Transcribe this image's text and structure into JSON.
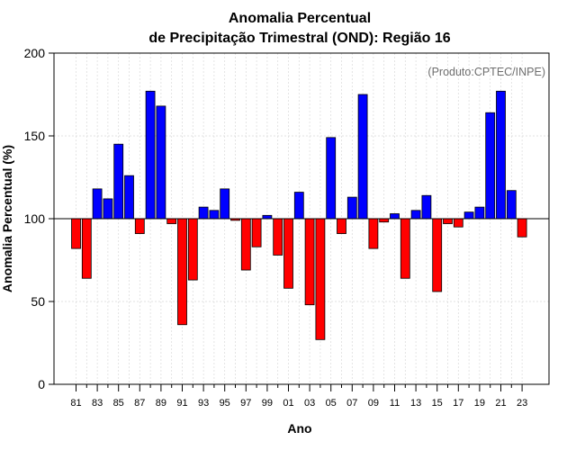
{
  "chart_data": {
    "type": "bar",
    "title_line1": "Anomalia Percentual",
    "title_line2": "de Precipitação Trimestral (OND): Região 16",
    "xlabel": "Ano",
    "ylabel": "Anomalia Percentual (%)",
    "credit": "(Produto:CPTEC/INPE)",
    "ylim": [
      0,
      200
    ],
    "yticks": [
      "0",
      "50",
      "100",
      "150",
      "200"
    ],
    "baseline": 100,
    "grid": true,
    "positive_color": "#0000ff",
    "negative_color": "#ff0000",
    "xtick_labels": [
      "81",
      "83",
      "85",
      "87",
      "89",
      "91",
      "93",
      "95",
      "97",
      "99",
      "01",
      "03",
      "05",
      "07",
      "09",
      "11",
      "13",
      "15",
      "17",
      "19",
      "21",
      "23"
    ],
    "categories": [
      "1981",
      "1982",
      "1983",
      "1984",
      "1985",
      "1986",
      "1987",
      "1988",
      "1989",
      "1990",
      "1991",
      "1992",
      "1993",
      "1994",
      "1995",
      "1996",
      "1997",
      "1998",
      "1999",
      "2000",
      "2001",
      "2002",
      "2003",
      "2004",
      "2005",
      "2006",
      "2007",
      "2008",
      "2009",
      "2010",
      "2011",
      "2012",
      "2013",
      "2014",
      "2015",
      "2016",
      "2017",
      "2018",
      "2019",
      "2020",
      "2021",
      "2022",
      "2023"
    ],
    "values": [
      82,
      64,
      118,
      112,
      145,
      126,
      91,
      177,
      168,
      97,
      36,
      63,
      107,
      105,
      118,
      99,
      69,
      83,
      102,
      78,
      58,
      116,
      48,
      27,
      149,
      91,
      113,
      175,
      82,
      98,
      103,
      64,
      105,
      114,
      56,
      97,
      95,
      104,
      107,
      164,
      177,
      117,
      89
    ]
  }
}
